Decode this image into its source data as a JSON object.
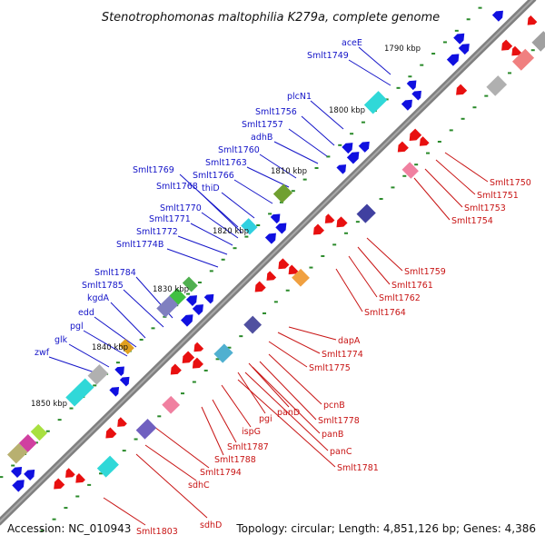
{
  "title": "Stenotrophomonas maltophilia K279a, complete genome",
  "footer": {
    "accession": "Accession: NC_010943",
    "topology": "Topology: circular; Length: 4,851,126 bp; Genes: 4,386"
  },
  "scale_labels": [
    "1790 kbp",
    "1800 kbp",
    "1810 kbp",
    "1820 kbp",
    "1830 kbp",
    "1840 kbp",
    "1850 kbp"
  ],
  "blue_labels": [
    "aceE",
    "Smlt1749",
    "plcN1",
    "Smlt1756",
    "Smlt1757",
    "adhB",
    "Smlt1760",
    "Smlt1763",
    "Smlt1766",
    "thiD",
    "Smlt1769",
    "Smlt1768",
    "Smlt1770",
    "Smlt1771",
    "Smlt1772",
    "Smlt1774B",
    "Smlt1784",
    "Smlt1785",
    "kgdA",
    "edd",
    "pgl",
    "glk",
    "zwf"
  ],
  "red_labels": [
    "Smlt1750",
    "Smlt1751",
    "Smlt1753",
    "Smlt1754",
    "Smlt1759",
    "Smlt1761",
    "Smlt1762",
    "Smlt1764",
    "dapA",
    "Smlt1774",
    "Smlt1775",
    "pcnB",
    "Smlt1778",
    "panB",
    "panC",
    "Smlt1781",
    "panD",
    "pgi",
    "ispG",
    "Smlt1787",
    "Smlt1788",
    "Smlt1794",
    "sdhC",
    "sdhD",
    "Smlt1803"
  ],
  "colors": {
    "backbone": "#808080",
    "forward_gene": "#1010e0",
    "reverse_gene": "#e81010",
    "blue_label": "#1414c8",
    "red_label": "#c81414",
    "tick": "#2a8a2a"
  }
}
